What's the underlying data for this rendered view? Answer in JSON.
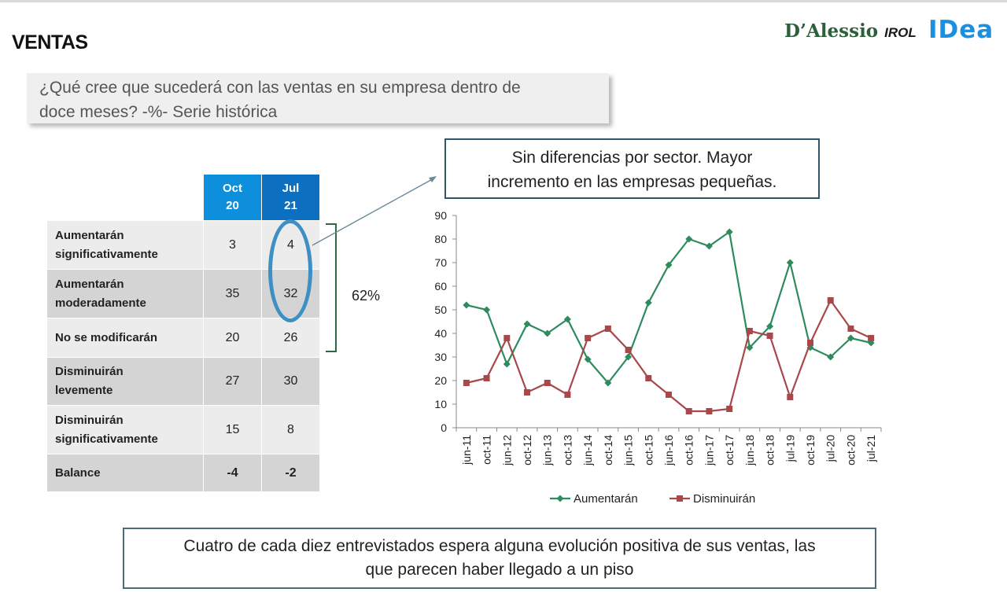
{
  "header": {
    "title": "VENTAS",
    "logo_primary": "D’Alessio",
    "logo_primary_suffix": "IROL",
    "logo_secondary": "IDea"
  },
  "question": {
    "line1": "¿Qué cree que sucederá con las ventas en su empresa dentro de",
    "line2": "doce meses? -%- Serie histórica"
  },
  "table": {
    "columns": [
      {
        "line1": "Oct",
        "line2": "20"
      },
      {
        "line1": "Jul",
        "line2": "21"
      }
    ],
    "rows": [
      {
        "line1": "Aumentarán",
        "line2": "significativamente",
        "oct20": "3",
        "jul21": "4"
      },
      {
        "line1": "Aumentarán",
        "line2": "moderadamente",
        "oct20": "35",
        "jul21": "32"
      },
      {
        "line1": "No se modificarán",
        "line2": "",
        "oct20": "20",
        "jul21": "26"
      },
      {
        "line1": "Disminuirán",
        "line2": "levemente",
        "oct20": "27",
        "jul21": "30"
      },
      {
        "line1": "Disminuirán",
        "line2": "significativamente",
        "oct20": "15",
        "jul21": "8"
      },
      {
        "line1": "Balance",
        "line2": "",
        "oct20": "-4",
        "jul21": "-2"
      }
    ],
    "bracket_label": "62%"
  },
  "note": {
    "line1": "Sin diferencias por sector. Mayor",
    "line2": "incremento en las empresas pequeñas."
  },
  "chart_data": {
    "type": "line",
    "categories": [
      "jun-11",
      "oct-11",
      "jun-12",
      "oct-12",
      "jun-13",
      "oct-13",
      "jun-14",
      "oct-14",
      "jun-15",
      "oct-15",
      "jun-16",
      "oct-16",
      "jun-17",
      "oct-17",
      "jun-18",
      "oct-18",
      "jul-19",
      "oct-19",
      "jul-20",
      "oct-20",
      "jul-21"
    ],
    "series": [
      {
        "name": "Aumentarán",
        "color": "#2e8b5e",
        "marker": "diamond",
        "values": [
          52,
          50,
          27,
          44,
          40,
          46,
          29,
          19,
          30,
          53,
          69,
          80,
          77,
          83,
          34,
          43,
          70,
          34,
          30,
          38,
          36
        ]
      },
      {
        "name": "Disminuirán",
        "color": "#a8484a",
        "marker": "square",
        "values": [
          19,
          21,
          38,
          15,
          19,
          14,
          38,
          42,
          33,
          21,
          14,
          7,
          7,
          8,
          41,
          39,
          13,
          36,
          54,
          42,
          38
        ]
      }
    ],
    "ylim": [
      0,
      90
    ],
    "yticks": [
      0,
      10,
      20,
      30,
      40,
      50,
      60,
      70,
      80,
      90
    ],
    "title": "",
    "xlabel": "",
    "ylabel": "",
    "grid": false,
    "legend": "bottom"
  },
  "footer": {
    "line1": "Cuatro de cada diez entrevistados espera alguna evolución positiva de sus ventas, las",
    "line2": "que parecen haber llegado a un piso"
  }
}
